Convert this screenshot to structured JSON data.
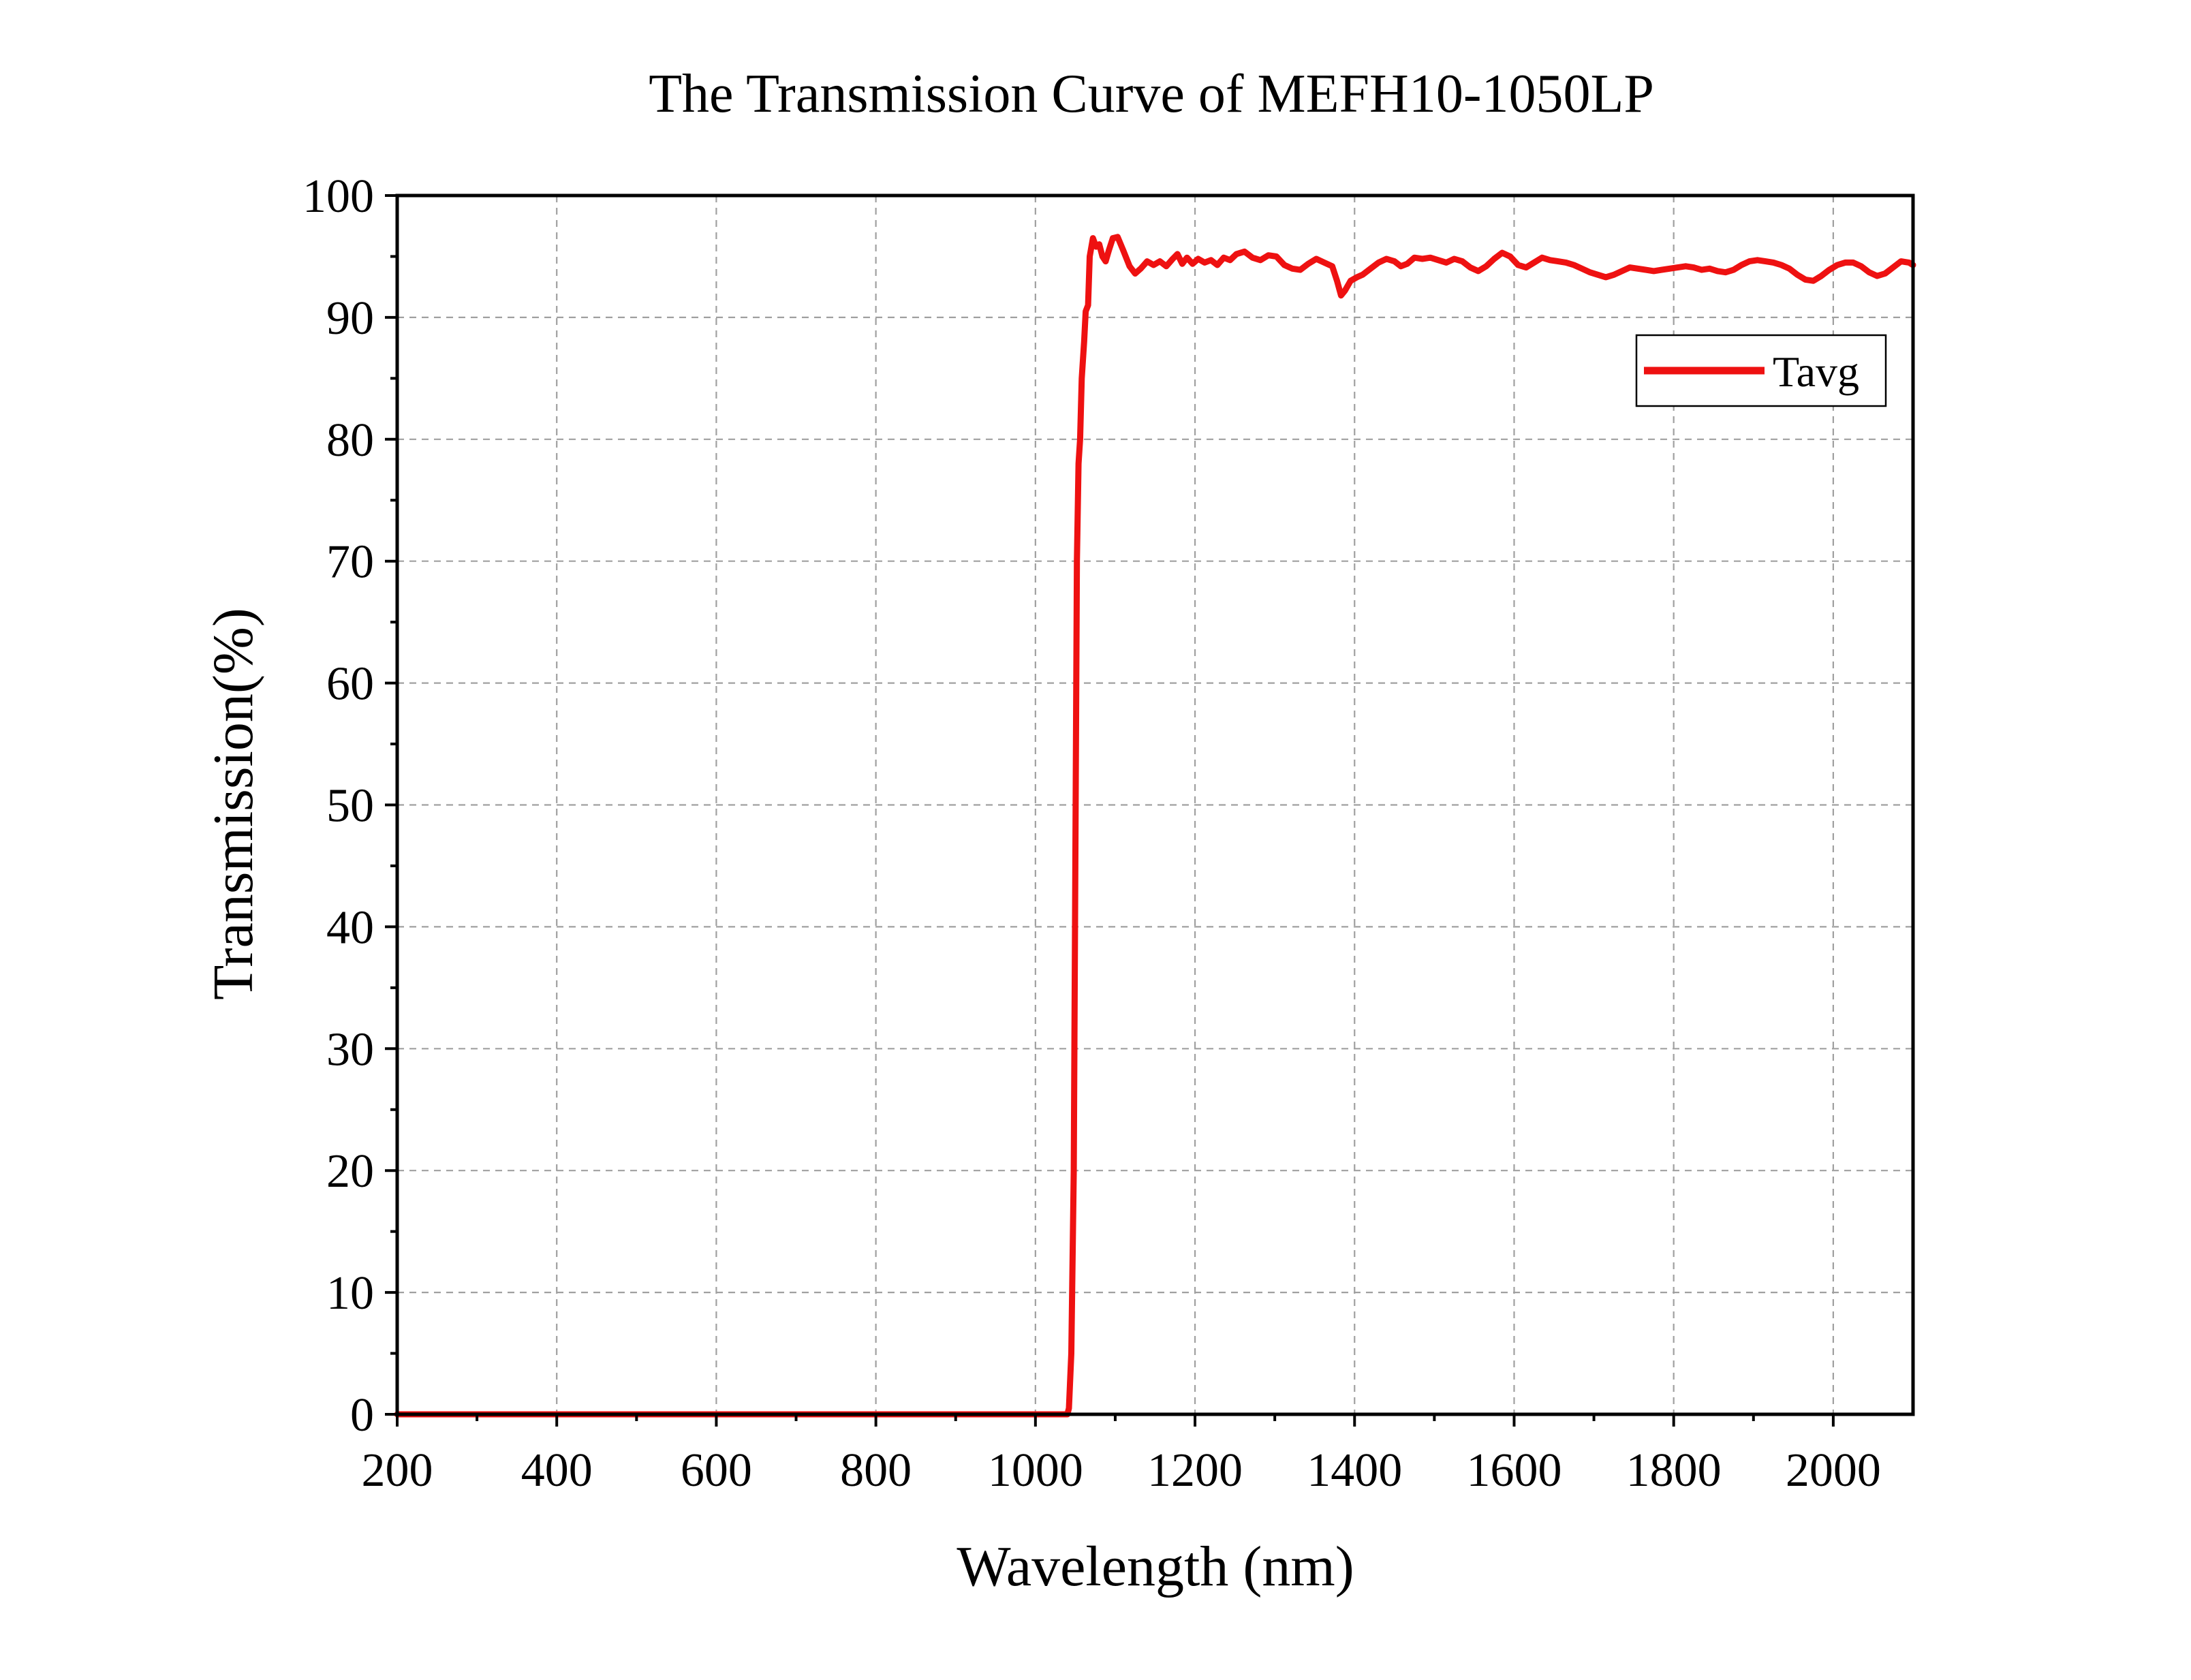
{
  "chart_data": {
    "type": "line",
    "title": "The Transmission Curve of MEFH10-1050LP",
    "xlabel": "Wavelength (nm)",
    "ylabel": "Transmission(%)",
    "xlim": [
      200,
      2100
    ],
    "ylim": [
      0,
      100
    ],
    "x_ticks": [
      200,
      400,
      600,
      800,
      1000,
      1200,
      1400,
      1600,
      1800,
      2000
    ],
    "y_ticks": [
      0,
      10,
      20,
      30,
      40,
      50,
      60,
      70,
      80,
      90,
      100
    ],
    "x_minor_step": 100,
    "y_minor_step": 5,
    "grid": true,
    "legend": {
      "placement": "top-right",
      "entries": [
        "Tavg"
      ]
    },
    "series": [
      {
        "name": "Tavg",
        "color": "#ee1111",
        "points": [
          [
            200,
            0
          ],
          [
            400,
            0
          ],
          [
            600,
            0
          ],
          [
            800,
            0
          ],
          [
            1000,
            0
          ],
          [
            1040,
            0
          ],
          [
            1042,
            0.5
          ],
          [
            1045,
            5
          ],
          [
            1048,
            20
          ],
          [
            1050,
            45
          ],
          [
            1052,
            70
          ],
          [
            1054,
            78
          ],
          [
            1056,
            80
          ],
          [
            1058,
            85
          ],
          [
            1061,
            88
          ],
          [
            1063,
            90.5
          ],
          [
            1066,
            91
          ],
          [
            1068,
            95
          ],
          [
            1072,
            96.5
          ],
          [
            1076,
            95.8
          ],
          [
            1080,
            96
          ],
          [
            1084,
            95
          ],
          [
            1088,
            94.6
          ],
          [
            1092,
            95.5
          ],
          [
            1097,
            96.5
          ],
          [
            1103,
            96.6
          ],
          [
            1110,
            95.5
          ],
          [
            1118,
            94.2
          ],
          [
            1125,
            93.6
          ],
          [
            1132,
            94
          ],
          [
            1140,
            94.6
          ],
          [
            1148,
            94.3
          ],
          [
            1156,
            94.6
          ],
          [
            1164,
            94.2
          ],
          [
            1172,
            94.8
          ],
          [
            1178,
            95.2
          ],
          [
            1184,
            94.4
          ],
          [
            1190,
            94.9
          ],
          [
            1197,
            94.4
          ],
          [
            1204,
            94.8
          ],
          [
            1212,
            94.5
          ],
          [
            1220,
            94.7
          ],
          [
            1228,
            94.3
          ],
          [
            1236,
            94.9
          ],
          [
            1244,
            94.7
          ],
          [
            1252,
            95.2
          ],
          [
            1262,
            95.4
          ],
          [
            1272,
            94.9
          ],
          [
            1282,
            94.7
          ],
          [
            1292,
            95.1
          ],
          [
            1302,
            95
          ],
          [
            1312,
            94.3
          ],
          [
            1322,
            94
          ],
          [
            1332,
            93.9
          ],
          [
            1342,
            94.4
          ],
          [
            1352,
            94.8
          ],
          [
            1362,
            94.5
          ],
          [
            1372,
            94.2
          ],
          [
            1378,
            93
          ],
          [
            1383,
            91.8
          ],
          [
            1388,
            92.2
          ],
          [
            1395,
            93
          ],
          [
            1403,
            93.3
          ],
          [
            1410,
            93.5
          ],
          [
            1420,
            94
          ],
          [
            1430,
            94.5
          ],
          [
            1440,
            94.8
          ],
          [
            1450,
            94.6
          ],
          [
            1458,
            94.2
          ],
          [
            1466,
            94.4
          ],
          [
            1475,
            94.9
          ],
          [
            1485,
            94.8
          ],
          [
            1495,
            94.9
          ],
          [
            1505,
            94.7
          ],
          [
            1515,
            94.5
          ],
          [
            1525,
            94.8
          ],
          [
            1535,
            94.6
          ],
          [
            1545,
            94.1
          ],
          [
            1555,
            93.8
          ],
          [
            1565,
            94.2
          ],
          [
            1575,
            94.8
          ],
          [
            1585,
            95.3
          ],
          [
            1595,
            95
          ],
          [
            1605,
            94.3
          ],
          [
            1615,
            94.1
          ],
          [
            1625,
            94.5
          ],
          [
            1635,
            94.9
          ],
          [
            1645,
            94.7
          ],
          [
            1655,
            94.6
          ],
          [
            1665,
            94.5
          ],
          [
            1675,
            94.3
          ],
          [
            1685,
            94
          ],
          [
            1695,
            93.7
          ],
          [
            1705,
            93.5
          ],
          [
            1715,
            93.3
          ],
          [
            1725,
            93.5
          ],
          [
            1735,
            93.8
          ],
          [
            1745,
            94.1
          ],
          [
            1755,
            94
          ],
          [
            1765,
            93.9
          ],
          [
            1775,
            93.8
          ],
          [
            1785,
            93.9
          ],
          [
            1795,
            94
          ],
          [
            1805,
            94.1
          ],
          [
            1815,
            94.2
          ],
          [
            1825,
            94.1
          ],
          [
            1835,
            93.9
          ],
          [
            1845,
            94
          ],
          [
            1855,
            93.8
          ],
          [
            1865,
            93.7
          ],
          [
            1875,
            93.9
          ],
          [
            1885,
            94.3
          ],
          [
            1895,
            94.6
          ],
          [
            1905,
            94.7
          ],
          [
            1915,
            94.6
          ],
          [
            1925,
            94.5
          ],
          [
            1935,
            94.3
          ],
          [
            1945,
            94
          ],
          [
            1955,
            93.5
          ],
          [
            1965,
            93.1
          ],
          [
            1975,
            93
          ],
          [
            1985,
            93.4
          ],
          [
            1995,
            93.9
          ],
          [
            2005,
            94.3
          ],
          [
            2015,
            94.5
          ],
          [
            2025,
            94.5
          ],
          [
            2035,
            94.2
          ],
          [
            2045,
            93.7
          ],
          [
            2055,
            93.4
          ],
          [
            2065,
            93.6
          ],
          [
            2075,
            94.1
          ],
          [
            2085,
            94.6
          ],
          [
            2095,
            94.5
          ],
          [
            2100,
            94.3
          ]
        ]
      }
    ]
  }
}
